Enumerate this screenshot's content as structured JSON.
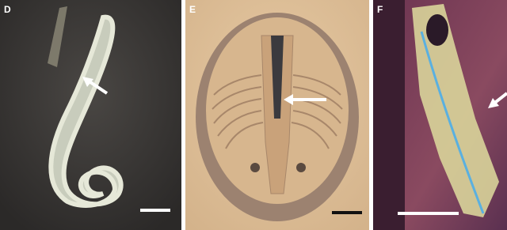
{
  "panels": [
    {
      "label": "D"
    },
    {
      "label": "E"
    },
    {
      "label": "F"
    }
  ]
}
